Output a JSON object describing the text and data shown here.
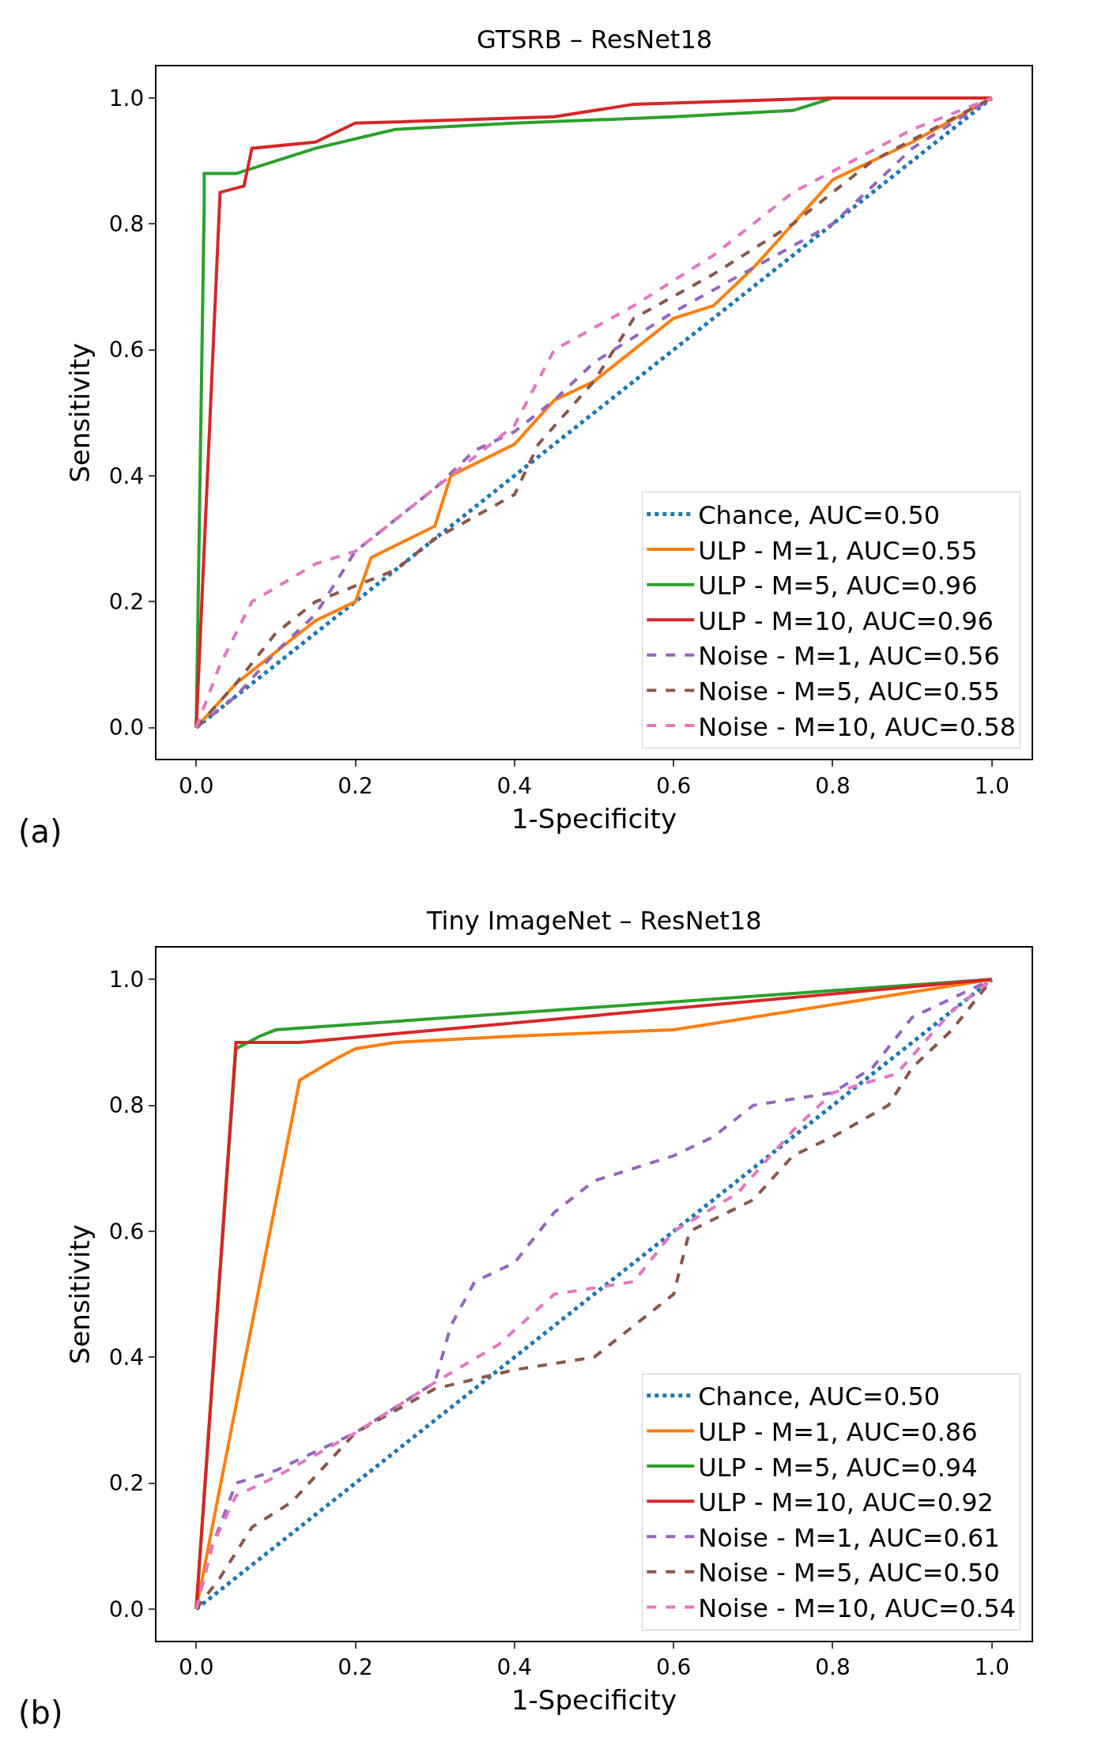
{
  "chart_data": [
    {
      "type": "line",
      "title": "GTSRB – ResNet18",
      "xlabel": "1-Specificity",
      "ylabel": "Sensitivity",
      "annotations": [
        "(a)"
      ],
      "xlim": [
        -0.05,
        1.05
      ],
      "ylim": [
        -0.05,
        1.05
      ],
      "xticks": [
        {
          "value": 0,
          "label": "0.0"
        },
        {
          "value": 0.2,
          "label": "0.2"
        },
        {
          "value": 0.4,
          "label": "0.4"
        },
        {
          "value": 0.6,
          "label": "0.6"
        },
        {
          "value": 0.8,
          "label": "0.8"
        },
        {
          "value": 1,
          "label": "1.0"
        }
      ],
      "yticks": [
        {
          "value": 0,
          "label": "0.0"
        },
        {
          "value": 0.2,
          "label": "0.2"
        },
        {
          "value": 0.4,
          "label": "0.4"
        },
        {
          "value": 0.6,
          "label": "0.6"
        },
        {
          "value": 0.8,
          "label": "0.8"
        },
        {
          "value": 1,
          "label": "1.0"
        }
      ],
      "legend": "bottom right",
      "marker": "none",
      "series": [
        {
          "name": "Chance, AUC=0.50",
          "color": "#1f77b4",
          "line_style": "dotted",
          "x": [
            0,
            1
          ],
          "values": [
            0,
            1
          ]
        },
        {
          "name": "ULP - M=1, AUC=0.55",
          "color": "#ff7f0e",
          "line_style": "solid",
          "x": [
            0,
            0.05,
            0.1,
            0.15,
            0.2,
            0.22,
            0.3,
            0.32,
            0.4,
            0.45,
            0.5,
            0.55,
            0.6,
            0.65,
            0.7,
            0.75,
            0.8,
            0.9,
            1
          ],
          "values": [
            0,
            0.07,
            0.12,
            0.17,
            0.2,
            0.27,
            0.32,
            0.4,
            0.45,
            0.52,
            0.55,
            0.6,
            0.65,
            0.67,
            0.73,
            0.8,
            0.87,
            0.93,
            1
          ]
        },
        {
          "name": "ULP - M=5, AUC=0.96",
          "color": "#2ca02c",
          "line_style": "solid",
          "x": [
            0,
            0.01,
            0.01,
            0.05,
            0.1,
            0.15,
            0.25,
            0.4,
            0.6,
            0.75,
            0.8,
            1
          ],
          "values": [
            0,
            0.83,
            0.88,
            0.88,
            0.9,
            0.92,
            0.95,
            0.96,
            0.97,
            0.98,
            1,
            1
          ]
        },
        {
          "name": "ULP - M=10, AUC=0.96",
          "color": "#d62728",
          "line_style": "solid",
          "x": [
            0,
            0.03,
            0.06,
            0.07,
            0.15,
            0.2,
            0.45,
            0.55,
            0.8,
            1
          ],
          "values": [
            0,
            0.85,
            0.86,
            0.92,
            0.93,
            0.96,
            0.97,
            0.99,
            1,
            1
          ]
        },
        {
          "name": "Noise - M=1, AUC=0.56",
          "color": "#9467bd",
          "line_style": "dashed",
          "x": [
            0,
            0.05,
            0.1,
            0.15,
            0.2,
            0.3,
            0.35,
            0.4,
            0.45,
            0.5,
            0.6,
            0.7,
            0.8,
            0.9,
            1
          ],
          "values": [
            0,
            0.05,
            0.12,
            0.18,
            0.28,
            0.38,
            0.44,
            0.47,
            0.52,
            0.58,
            0.66,
            0.73,
            0.8,
            0.92,
            1
          ]
        },
        {
          "name": "Noise - M=5, AUC=0.55",
          "color": "#8c564b",
          "line_style": "dashed",
          "x": [
            0,
            0.05,
            0.1,
            0.15,
            0.25,
            0.3,
            0.4,
            0.43,
            0.5,
            0.55,
            0.65,
            0.75,
            0.85,
            1
          ],
          "values": [
            0,
            0.07,
            0.15,
            0.2,
            0.25,
            0.3,
            0.37,
            0.45,
            0.55,
            0.65,
            0.72,
            0.8,
            0.9,
            1
          ]
        },
        {
          "name": "Noise - M=10, AUC=0.58",
          "color": "#e377c2",
          "line_style": "dashed",
          "x": [
            0,
            0.03,
            0.07,
            0.15,
            0.2,
            0.3,
            0.4,
            0.45,
            0.55,
            0.65,
            0.75,
            0.9,
            1
          ],
          "values": [
            0,
            0.1,
            0.2,
            0.26,
            0.28,
            0.38,
            0.48,
            0.6,
            0.67,
            0.75,
            0.85,
            0.95,
            1
          ]
        }
      ]
    },
    {
      "type": "line",
      "title": "Tiny ImageNet – ResNet18",
      "xlabel": "1-Specificity",
      "ylabel": "Sensitivity",
      "annotations": [
        "(b)"
      ],
      "xlim": [
        -0.05,
        1.05
      ],
      "ylim": [
        -0.05,
        1.05
      ],
      "xticks": [
        {
          "value": 0,
          "label": "0.0"
        },
        {
          "value": 0.2,
          "label": "0.2"
        },
        {
          "value": 0.4,
          "label": "0.4"
        },
        {
          "value": 0.6,
          "label": "0.6"
        },
        {
          "value": 0.8,
          "label": "0.8"
        },
        {
          "value": 1,
          "label": "1.0"
        }
      ],
      "yticks": [
        {
          "value": 0,
          "label": "0.0"
        },
        {
          "value": 0.2,
          "label": "0.2"
        },
        {
          "value": 0.4,
          "label": "0.4"
        },
        {
          "value": 0.6,
          "label": "0.6"
        },
        {
          "value": 0.8,
          "label": "0.8"
        },
        {
          "value": 1,
          "label": "1.0"
        }
      ],
      "legend": "bottom right",
      "marker": "none",
      "series": [
        {
          "name": "Chance, AUC=0.50",
          "color": "#1f77b4",
          "line_style": "dotted",
          "x": [
            0,
            1
          ],
          "values": [
            0,
            1
          ]
        },
        {
          "name": "ULP - M=1, AUC=0.86",
          "color": "#ff7f0e",
          "line_style": "solid",
          "x": [
            0,
            0.13,
            0.17,
            0.2,
            0.25,
            0.4,
            0.6,
            1
          ],
          "values": [
            0,
            0.84,
            0.87,
            0.89,
            0.9,
            0.91,
            0.92,
            1
          ]
        },
        {
          "name": "ULP - M=5, AUC=0.94",
          "color": "#2ca02c",
          "line_style": "solid",
          "x": [
            0,
            0.05,
            0.08,
            0.1,
            1
          ],
          "values": [
            0,
            0.89,
            0.91,
            0.92,
            1
          ]
        },
        {
          "name": "ULP - M=10, AUC=0.92",
          "color": "#d62728",
          "line_style": "solid",
          "x": [
            0,
            0.05,
            0.13,
            1
          ],
          "values": [
            0,
            0.9,
            0.9,
            1
          ]
        },
        {
          "name": "Noise - M=1, AUC=0.61",
          "color": "#9467bd",
          "line_style": "dashed",
          "x": [
            0,
            0.02,
            0.05,
            0.1,
            0.15,
            0.2,
            0.25,
            0.3,
            0.32,
            0.35,
            0.4,
            0.45,
            0.5,
            0.6,
            0.65,
            0.7,
            0.8,
            0.85,
            0.9,
            0.95,
            1
          ],
          "values": [
            0,
            0.1,
            0.2,
            0.22,
            0.25,
            0.28,
            0.32,
            0.36,
            0.45,
            0.52,
            0.55,
            0.63,
            0.68,
            0.72,
            0.75,
            0.8,
            0.82,
            0.86,
            0.94,
            0.97,
            1
          ]
        },
        {
          "name": "Noise - M=5, AUC=0.50",
          "color": "#8c564b",
          "line_style": "dashed",
          "x": [
            0,
            0.03,
            0.07,
            0.12,
            0.2,
            0.3,
            0.4,
            0.5,
            0.6,
            0.62,
            0.7,
            0.75,
            0.8,
            0.87,
            0.9,
            0.95,
            1
          ],
          "values": [
            0,
            0.05,
            0.13,
            0.17,
            0.28,
            0.35,
            0.38,
            0.4,
            0.5,
            0.6,
            0.65,
            0.72,
            0.75,
            0.8,
            0.86,
            0.92,
            1
          ]
        },
        {
          "name": "Noise - M=10, AUC=0.54",
          "color": "#e377c2",
          "line_style": "dashed",
          "x": [
            0,
            0.02,
            0.05,
            0.1,
            0.2,
            0.3,
            0.38,
            0.45,
            0.55,
            0.6,
            0.68,
            0.75,
            0.8,
            0.88,
            0.95,
            1
          ],
          "values": [
            0,
            0.1,
            0.18,
            0.21,
            0.28,
            0.36,
            0.42,
            0.5,
            0.52,
            0.6,
            0.66,
            0.76,
            0.82,
            0.85,
            0.95,
            1
          ]
        }
      ]
    }
  ]
}
